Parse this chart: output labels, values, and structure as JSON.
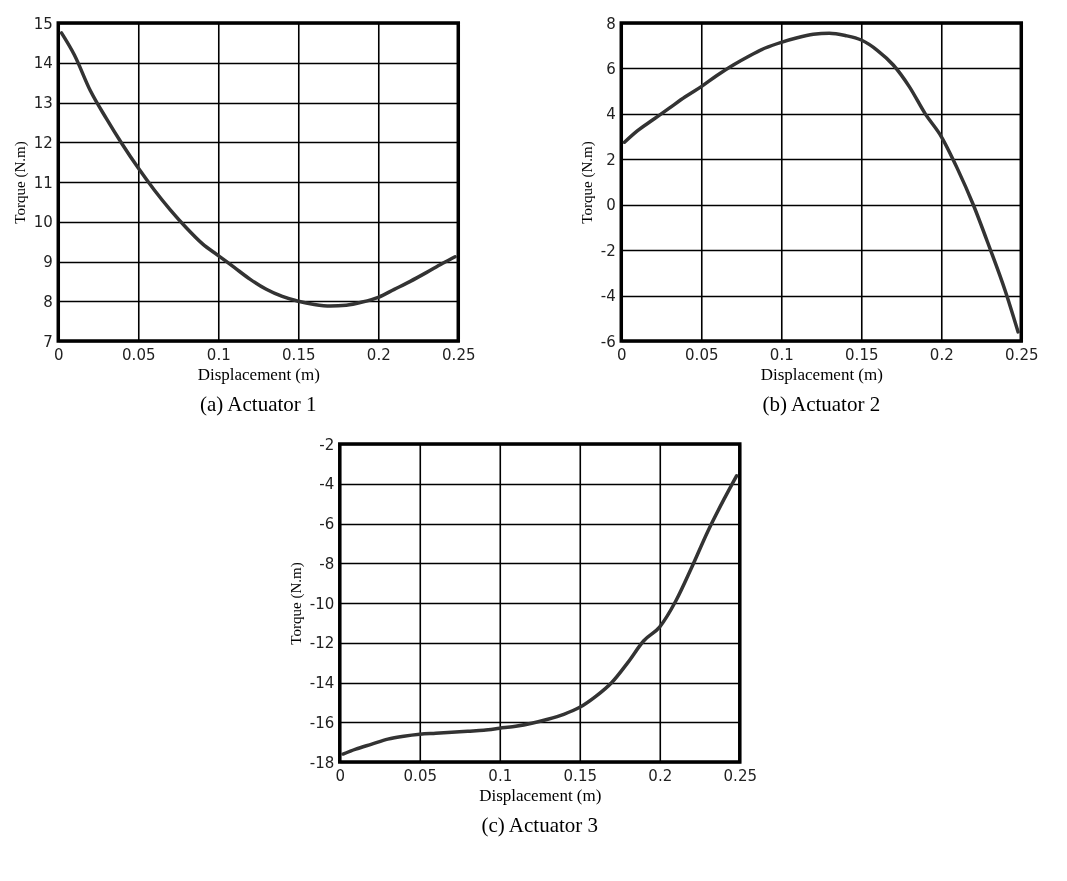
{
  "chart_data": [
    {
      "type": "line",
      "title": "(a) Actuator 1",
      "xlabel": "Displacement (m)",
      "ylabel": "Torque (N.m)",
      "xlim": [
        0,
        0.25
      ],
      "ylim": [
        7,
        15
      ],
      "xticks": [
        0,
        0.05,
        0.1,
        0.15,
        0.2,
        0.25
      ],
      "yticks": [
        7,
        8,
        9,
        10,
        11,
        12,
        13,
        14,
        15
      ],
      "grid": true,
      "x": [
        0.002,
        0.01,
        0.02,
        0.03,
        0.04,
        0.05,
        0.06,
        0.07,
        0.08,
        0.09,
        0.1,
        0.11,
        0.12,
        0.13,
        0.14,
        0.15,
        0.16,
        0.17,
        0.18,
        0.19,
        0.2,
        0.21,
        0.22,
        0.23,
        0.24,
        0.248
      ],
      "series": [
        {
          "color": "#333333",
          "values": [
            14.75,
            14.2,
            13.3,
            12.6,
            11.95,
            11.35,
            10.8,
            10.3,
            9.85,
            9.45,
            9.15,
            8.85,
            8.55,
            8.3,
            8.12,
            8.0,
            7.92,
            7.88,
            7.9,
            7.98,
            8.1,
            8.3,
            8.5,
            8.72,
            8.95,
            9.12
          ]
        }
      ]
    },
    {
      "type": "line",
      "title": "(b) Actuator 2",
      "xlabel": "Displacement (m)",
      "ylabel": "Torque (N.m)",
      "xlim": [
        0,
        0.25
      ],
      "ylim": [
        -6,
        8
      ],
      "xticks": [
        0,
        0.05,
        0.1,
        0.15,
        0.2,
        0.25
      ],
      "yticks": [
        -6,
        -4,
        -2,
        0,
        2,
        4,
        6,
        8
      ],
      "grid": true,
      "x": [
        0.002,
        0.01,
        0.02,
        0.03,
        0.04,
        0.05,
        0.06,
        0.07,
        0.08,
        0.09,
        0.1,
        0.11,
        0.12,
        0.13,
        0.14,
        0.15,
        0.16,
        0.17,
        0.18,
        0.19,
        0.2,
        0.21,
        0.22,
        0.23,
        0.24,
        0.248
      ],
      "series": [
        {
          "color": "#333333",
          "values": [
            2.75,
            3.25,
            3.75,
            4.25,
            4.75,
            5.2,
            5.7,
            6.15,
            6.55,
            6.9,
            7.15,
            7.35,
            7.5,
            7.55,
            7.45,
            7.25,
            6.8,
            6.15,
            5.2,
            4.0,
            3.0,
            1.6,
            0.0,
            -1.85,
            -3.8,
            -5.6
          ]
        }
      ]
    },
    {
      "type": "line",
      "title": "(c) Actuator 3",
      "xlabel": "Displacement (m)",
      "ylabel": "Torque (N.m)",
      "xlim": [
        0,
        0.25
      ],
      "ylim": [
        -18,
        -2
      ],
      "xticks": [
        0,
        0.05,
        0.1,
        0.15,
        0.2,
        0.25
      ],
      "yticks": [
        -18,
        -16,
        -14,
        -12,
        -10,
        -8,
        -6,
        -4,
        -2
      ],
      "grid": true,
      "x": [
        0.002,
        0.01,
        0.02,
        0.03,
        0.04,
        0.05,
        0.06,
        0.07,
        0.08,
        0.09,
        0.1,
        0.11,
        0.12,
        0.13,
        0.14,
        0.15,
        0.16,
        0.17,
        0.18,
        0.19,
        0.2,
        0.21,
        0.22,
        0.23,
        0.24,
        0.248
      ],
      "series": [
        {
          "color": "#333333",
          "values": [
            -17.6,
            -17.35,
            -17.1,
            -16.85,
            -16.7,
            -16.6,
            -16.55,
            -16.5,
            -16.45,
            -16.4,
            -16.3,
            -16.2,
            -16.05,
            -15.85,
            -15.6,
            -15.25,
            -14.7,
            -14.0,
            -13.0,
            -11.9,
            -11.2,
            -9.9,
            -8.2,
            -6.4,
            -4.8,
            -3.6
          ]
        }
      ]
    }
  ]
}
